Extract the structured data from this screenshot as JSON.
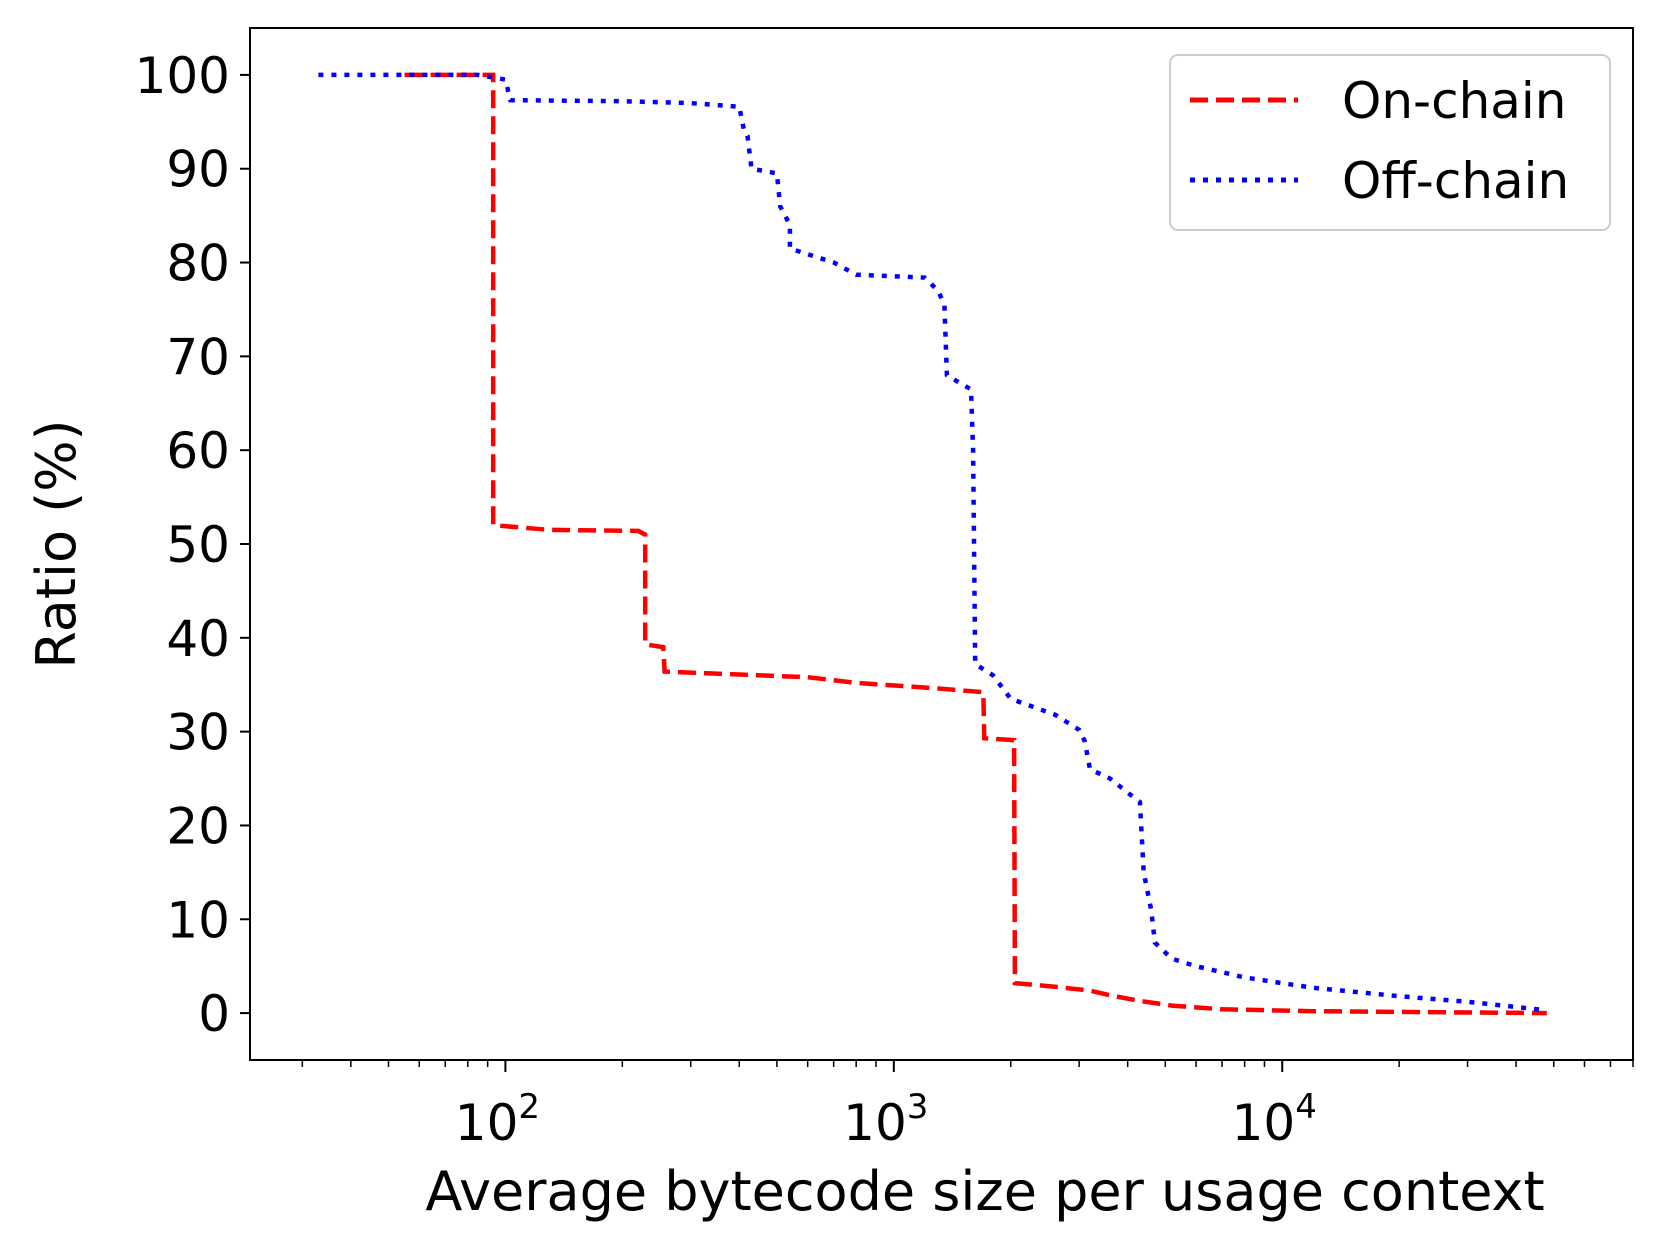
{
  "chart_data": {
    "type": "line",
    "title": "",
    "xlabel": "Average bytecode size per usage context",
    "ylabel": "Ratio (%)",
    "xscale": "log",
    "xlim": [
      22,
      80000
    ],
    "ylim": [
      -5,
      105
    ],
    "yticks": [
      0,
      10,
      20,
      30,
      40,
      50,
      60,
      70,
      80,
      90,
      100
    ],
    "ytick_labels": [
      "0",
      "10",
      "20",
      "30",
      "40",
      "50",
      "60",
      "70",
      "80",
      "90",
      "100"
    ],
    "xticks": [
      {
        "value": 100,
        "base": "10",
        "exp": "2"
      },
      {
        "value": 1000,
        "base": "10",
        "exp": "3"
      },
      {
        "value": 10000,
        "base": "10",
        "exp": "4"
      }
    ],
    "legend": {
      "position": "top-right",
      "entries": [
        {
          "label": "On-chain",
          "color": "#ff0000",
          "style": "dashed"
        },
        {
          "label": "Off-chain",
          "color": "#0000ff",
          "style": "dotted"
        }
      ]
    },
    "series": [
      {
        "name": "On-chain",
        "color": "#ff0000",
        "style": "dashed",
        "points": [
          [
            55,
            100
          ],
          [
            93,
            100
          ],
          [
            93,
            52
          ],
          [
            130,
            51.5
          ],
          [
            220,
            51.4
          ],
          [
            229,
            51
          ],
          [
            229,
            39.3
          ],
          [
            255,
            39
          ],
          [
            257,
            36.4
          ],
          [
            600,
            35.8
          ],
          [
            800,
            35.2
          ],
          [
            1300,
            34.6
          ],
          [
            1700,
            34.2
          ],
          [
            1710,
            29.3
          ],
          [
            2040,
            29.1
          ],
          [
            2050,
            3.2
          ],
          [
            2600,
            2.8
          ],
          [
            3200,
            2.4
          ],
          [
            3600,
            1.9
          ],
          [
            4300,
            1.3
          ],
          [
            5200,
            0.8
          ],
          [
            7000,
            0.4
          ],
          [
            12000,
            0.2
          ],
          [
            48000,
            0
          ]
        ]
      },
      {
        "name": "Off-chain",
        "color": "#0000ff",
        "style": "dotted",
        "points": [
          [
            33,
            100
          ],
          [
            85,
            100
          ],
          [
            100,
            99.5
          ],
          [
            103,
            97.3
          ],
          [
            200,
            97.2
          ],
          [
            300,
            97
          ],
          [
            400,
            96.6
          ],
          [
            412,
            94
          ],
          [
            420,
            93.5
          ],
          [
            430,
            90
          ],
          [
            500,
            89.5
          ],
          [
            510,
            86
          ],
          [
            540,
            84
          ],
          [
            540,
            81.5
          ],
          [
            700,
            80
          ],
          [
            800,
            78.7
          ],
          [
            1200,
            78.4
          ],
          [
            1300,
            77
          ],
          [
            1350,
            75.5
          ],
          [
            1370,
            68
          ],
          [
            1500,
            67
          ],
          [
            1580,
            66.5
          ],
          [
            1600,
            60
          ],
          [
            1620,
            37.2
          ],
          [
            1800,
            36
          ],
          [
            2000,
            33.5
          ],
          [
            2600,
            31.8
          ],
          [
            3000,
            30.2
          ],
          [
            3100,
            29
          ],
          [
            3200,
            26
          ],
          [
            3600,
            25
          ],
          [
            4000,
            23.5
          ],
          [
            4300,
            22.5
          ],
          [
            4400,
            15
          ],
          [
            4600,
            11
          ],
          [
            4700,
            7.5
          ],
          [
            5200,
            5.8
          ],
          [
            6000,
            5
          ],
          [
            8000,
            3.8
          ],
          [
            12000,
            2.7
          ],
          [
            20000,
            1.8
          ],
          [
            30000,
            1.2
          ],
          [
            48000,
            0.3
          ]
        ]
      }
    ]
  }
}
